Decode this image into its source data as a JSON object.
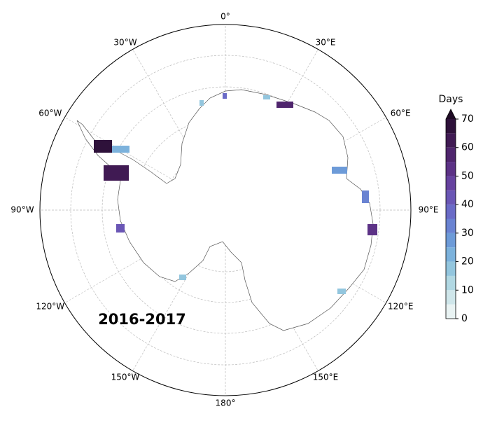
{
  "map": {
    "lon_labels": [
      {
        "value": 0,
        "label": "0°"
      },
      {
        "value": 30,
        "label": "30°E"
      },
      {
        "value": 60,
        "label": "60°E"
      },
      {
        "value": 90,
        "label": "90°E"
      },
      {
        "value": 120,
        "label": "120°E"
      },
      {
        "value": 150,
        "label": "150°E"
      },
      {
        "value": 180,
        "label": "180°"
      },
      {
        "value": 210,
        "label": "150°W"
      },
      {
        "value": 240,
        "label": "120°W"
      },
      {
        "value": 270,
        "label": "90°W"
      },
      {
        "value": 300,
        "label": "60°W"
      },
      {
        "value": 330,
        "label": "30°W"
      }
    ],
    "period_label": "2016-2017"
  },
  "colorbar": {
    "title": "Days",
    "lim": [
      0,
      70
    ],
    "ticks": [
      0,
      10,
      20,
      30,
      40,
      50,
      60,
      70
    ],
    "levels": [
      0,
      5,
      10,
      15,
      20,
      25,
      30,
      35,
      40,
      45,
      50,
      55,
      60,
      65,
      70
    ],
    "colors": [
      "#e9f3f3",
      "#cfe6ea",
      "#b1d8e3",
      "#93c6de",
      "#7cb2dc",
      "#6d9bd8",
      "#6a83d2",
      "#6a6bc7",
      "#6a56b5",
      "#66429f",
      "#5c3286",
      "#4f256d",
      "#401a53",
      "#2e113a"
    ],
    "extend_color": "#1f0b25"
  }
}
